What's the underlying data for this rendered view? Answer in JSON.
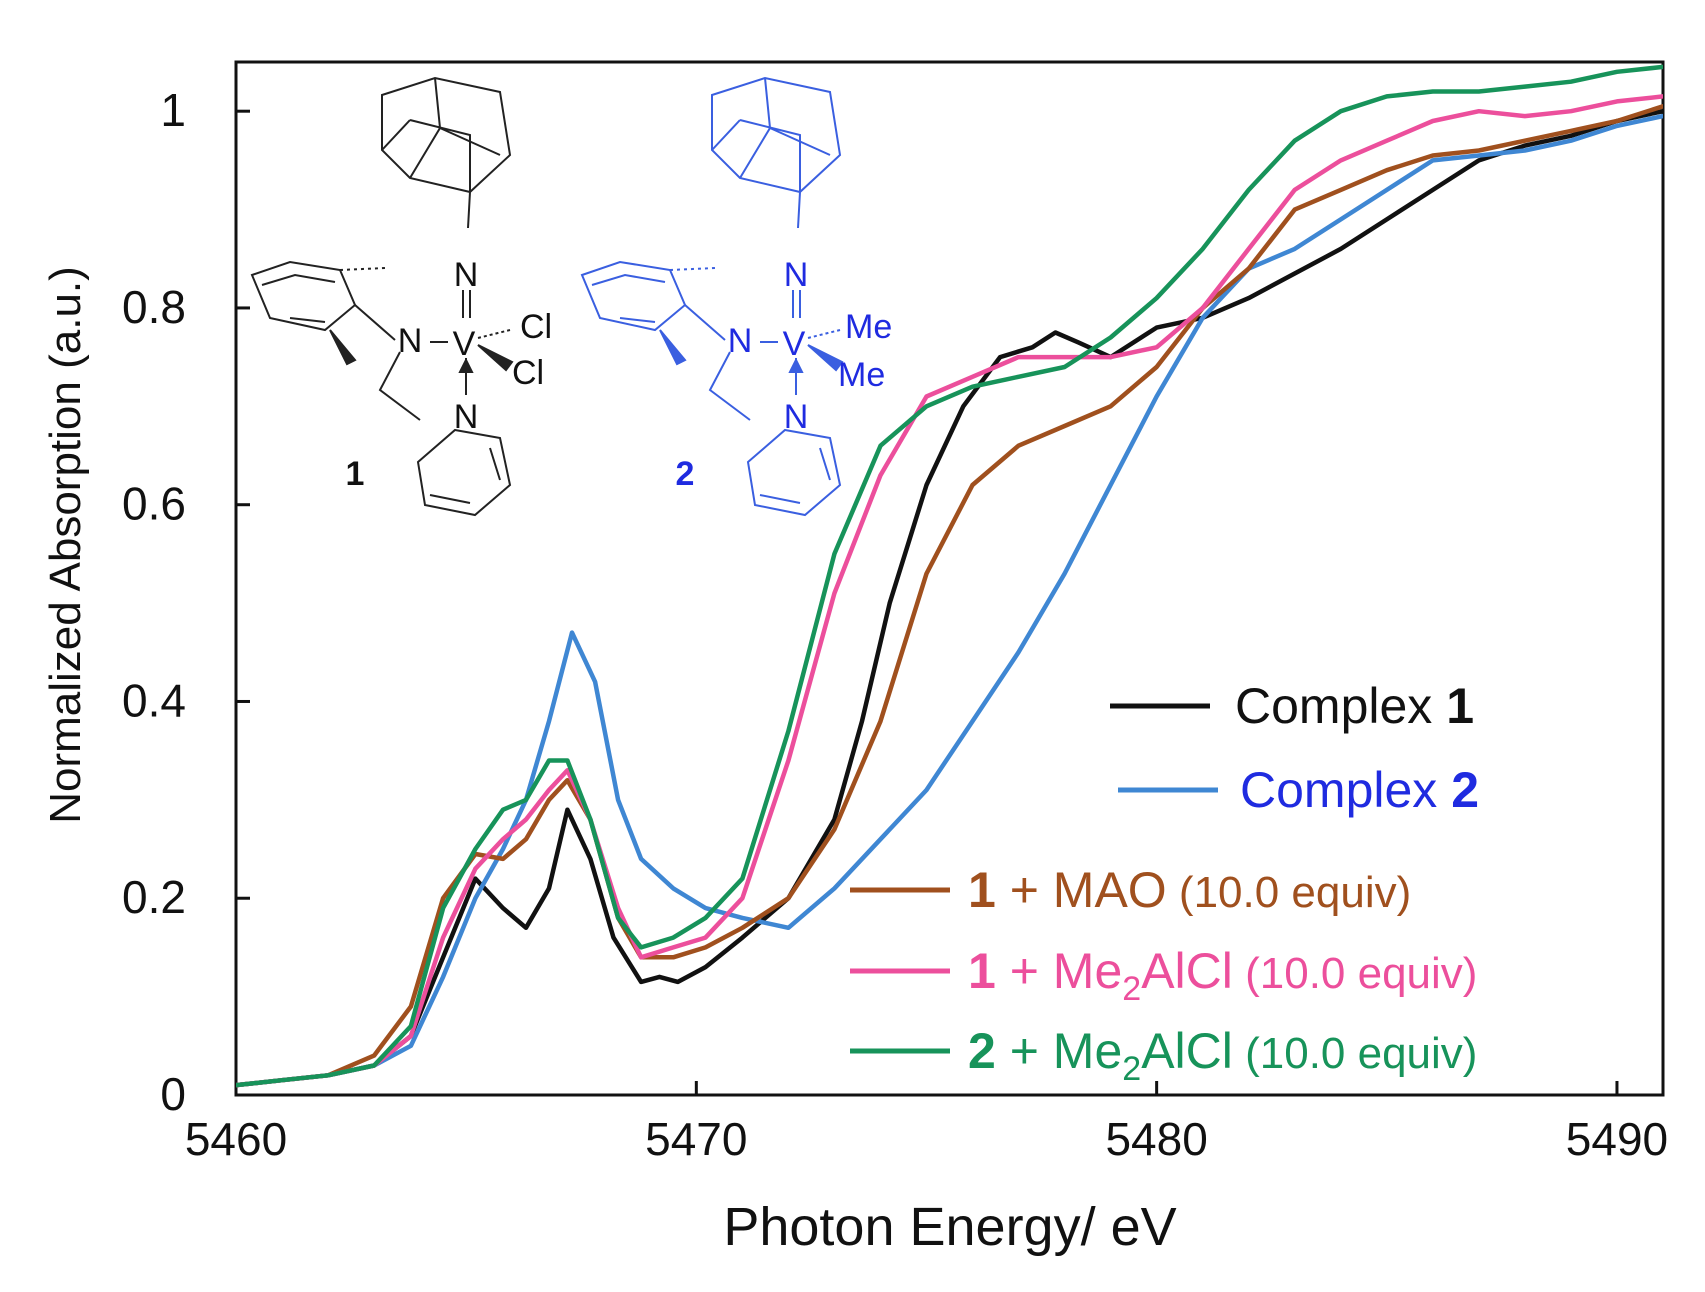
{
  "chart_data": {
    "type": "line",
    "xlabel": "Photon Energy/ eV",
    "ylabel": "Normalized Absorption (a.u.)",
    "xlim": [
      5460,
      5491
    ],
    "ylim": [
      0,
      1.05
    ],
    "xticks": [
      {
        "value": 5460,
        "label": "5460"
      },
      {
        "value": 5470,
        "label": "5470"
      },
      {
        "value": 5480,
        "label": "5480"
      },
      {
        "value": 5490,
        "label": "5490"
      }
    ],
    "yticks": [
      {
        "value": 0,
        "label": "0"
      },
      {
        "value": 0.2,
        "label": "0.2"
      },
      {
        "value": 0.4,
        "label": "0.4"
      },
      {
        "value": 0.6,
        "label": "0.6"
      },
      {
        "value": 0.8,
        "label": "0.8"
      },
      {
        "value": 1.0,
        "label": "1"
      }
    ],
    "series": [
      {
        "name": "Complex 1",
        "color": "#111111",
        "points": [
          [
            5460,
            0.01
          ],
          [
            5461,
            0.015
          ],
          [
            5462,
            0.02
          ],
          [
            5463,
            0.03
          ],
          [
            5463.8,
            0.06
          ],
          [
            5464.5,
            0.14
          ],
          [
            5465.2,
            0.22
          ],
          [
            5465.8,
            0.19
          ],
          [
            5466.3,
            0.17
          ],
          [
            5466.8,
            0.21
          ],
          [
            5467.2,
            0.29
          ],
          [
            5467.7,
            0.24
          ],
          [
            5468.2,
            0.16
          ],
          [
            5468.8,
            0.115
          ],
          [
            5469.2,
            0.12
          ],
          [
            5469.6,
            0.115
          ],
          [
            5470.2,
            0.13
          ],
          [
            5471,
            0.16
          ],
          [
            5472,
            0.2
          ],
          [
            5473,
            0.28
          ],
          [
            5473.6,
            0.38
          ],
          [
            5474.2,
            0.5
          ],
          [
            5475,
            0.62
          ],
          [
            5475.8,
            0.7
          ],
          [
            5476.6,
            0.75
          ],
          [
            5477.3,
            0.76
          ],
          [
            5477.8,
            0.775
          ],
          [
            5478.3,
            0.765
          ],
          [
            5479,
            0.75
          ],
          [
            5480,
            0.78
          ],
          [
            5480.5,
            0.785
          ],
          [
            5481,
            0.79
          ],
          [
            5482,
            0.81
          ],
          [
            5483,
            0.835
          ],
          [
            5484,
            0.86
          ],
          [
            5485,
            0.89
          ],
          [
            5486,
            0.92
          ],
          [
            5487,
            0.95
          ],
          [
            5488,
            0.965
          ],
          [
            5489,
            0.975
          ],
          [
            5490,
            0.99
          ],
          [
            5491,
            1.0
          ]
        ]
      },
      {
        "name": "Complex 2",
        "color": "#3f87d3",
        "points": [
          [
            5460,
            0.01
          ],
          [
            5461,
            0.015
          ],
          [
            5462,
            0.02
          ],
          [
            5463,
            0.03
          ],
          [
            5463.8,
            0.05
          ],
          [
            5464.5,
            0.12
          ],
          [
            5465.2,
            0.2
          ],
          [
            5465.8,
            0.25
          ],
          [
            5466.3,
            0.3
          ],
          [
            5466.8,
            0.38
          ],
          [
            5467.3,
            0.47
          ],
          [
            5467.8,
            0.42
          ],
          [
            5468.3,
            0.3
          ],
          [
            5468.8,
            0.24
          ],
          [
            5469.5,
            0.21
          ],
          [
            5470.2,
            0.19
          ],
          [
            5471,
            0.18
          ],
          [
            5472,
            0.17
          ],
          [
            5473,
            0.21
          ],
          [
            5474,
            0.26
          ],
          [
            5475,
            0.31
          ],
          [
            5476,
            0.38
          ],
          [
            5477,
            0.45
          ],
          [
            5478,
            0.53
          ],
          [
            5479,
            0.62
          ],
          [
            5480,
            0.71
          ],
          [
            5481,
            0.79
          ],
          [
            5482,
            0.84
          ],
          [
            5483,
            0.86
          ],
          [
            5484,
            0.89
          ],
          [
            5485,
            0.92
          ],
          [
            5486,
            0.95
          ],
          [
            5487,
            0.955
          ],
          [
            5488,
            0.96
          ],
          [
            5489,
            0.97
          ],
          [
            5490,
            0.985
          ],
          [
            5491,
            0.995
          ]
        ]
      },
      {
        "name": "1 + MAO (10.0 equiv)",
        "color": "#a0501e",
        "points": [
          [
            5460,
            0.01
          ],
          [
            5461,
            0.015
          ],
          [
            5462,
            0.02
          ],
          [
            5463,
            0.04
          ],
          [
            5463.8,
            0.09
          ],
          [
            5464.5,
            0.2
          ],
          [
            5465.2,
            0.245
          ],
          [
            5465.8,
            0.24
          ],
          [
            5466.3,
            0.26
          ],
          [
            5466.8,
            0.3
          ],
          [
            5467.2,
            0.32
          ],
          [
            5467.7,
            0.28
          ],
          [
            5468.3,
            0.18
          ],
          [
            5468.8,
            0.14
          ],
          [
            5469.5,
            0.14
          ],
          [
            5470.2,
            0.15
          ],
          [
            5471,
            0.17
          ],
          [
            5472,
            0.2
          ],
          [
            5473,
            0.27
          ],
          [
            5474,
            0.38
          ],
          [
            5475,
            0.53
          ],
          [
            5476,
            0.62
          ],
          [
            5477,
            0.66
          ],
          [
            5478,
            0.68
          ],
          [
            5479,
            0.7
          ],
          [
            5480,
            0.74
          ],
          [
            5481,
            0.8
          ],
          [
            5482,
            0.84
          ],
          [
            5483,
            0.9
          ],
          [
            5484,
            0.92
          ],
          [
            5485,
            0.94
          ],
          [
            5486,
            0.955
          ],
          [
            5487,
            0.96
          ],
          [
            5488,
            0.97
          ],
          [
            5489,
            0.98
          ],
          [
            5490,
            0.99
          ],
          [
            5491,
            1.005
          ]
        ]
      },
      {
        "name": "1 + Me2AlCl (10.0 equiv)",
        "color": "#ec4f9c",
        "points": [
          [
            5460,
            0.01
          ],
          [
            5461,
            0.015
          ],
          [
            5462,
            0.02
          ],
          [
            5463,
            0.03
          ],
          [
            5463.8,
            0.06
          ],
          [
            5464.5,
            0.16
          ],
          [
            5465.2,
            0.23
          ],
          [
            5465.8,
            0.26
          ],
          [
            5466.3,
            0.28
          ],
          [
            5466.8,
            0.31
          ],
          [
            5467.2,
            0.33
          ],
          [
            5467.7,
            0.28
          ],
          [
            5468.3,
            0.19
          ],
          [
            5468.8,
            0.14
          ],
          [
            5469.5,
            0.15
          ],
          [
            5470.2,
            0.16
          ],
          [
            5471,
            0.2
          ],
          [
            5472,
            0.34
          ],
          [
            5473,
            0.51
          ],
          [
            5474,
            0.63
          ],
          [
            5475,
            0.71
          ],
          [
            5476,
            0.73
          ],
          [
            5477,
            0.75
          ],
          [
            5478,
            0.75
          ],
          [
            5479,
            0.75
          ],
          [
            5480,
            0.76
          ],
          [
            5481,
            0.8
          ],
          [
            5482,
            0.86
          ],
          [
            5483,
            0.92
          ],
          [
            5484,
            0.95
          ],
          [
            5485,
            0.97
          ],
          [
            5486,
            0.99
          ],
          [
            5487,
            1.0
          ],
          [
            5488,
            0.995
          ],
          [
            5489,
            1.0
          ],
          [
            5490,
            1.01
          ],
          [
            5491,
            1.015
          ]
        ]
      },
      {
        "name": "2 + Me2AlCl (10.0 equiv)",
        "color": "#17935a",
        "points": [
          [
            5460,
            0.01
          ],
          [
            5461,
            0.015
          ],
          [
            5462,
            0.02
          ],
          [
            5463,
            0.03
          ],
          [
            5463.8,
            0.07
          ],
          [
            5464.5,
            0.19
          ],
          [
            5465.2,
            0.25
          ],
          [
            5465.8,
            0.29
          ],
          [
            5466.3,
            0.3
          ],
          [
            5466.8,
            0.34
          ],
          [
            5467.2,
            0.34
          ],
          [
            5467.7,
            0.28
          ],
          [
            5468.3,
            0.18
          ],
          [
            5468.8,
            0.15
          ],
          [
            5469.5,
            0.16
          ],
          [
            5470.2,
            0.18
          ],
          [
            5471,
            0.22
          ],
          [
            5472,
            0.37
          ],
          [
            5473,
            0.55
          ],
          [
            5474,
            0.66
          ],
          [
            5475,
            0.7
          ],
          [
            5476,
            0.72
          ],
          [
            5477,
            0.73
          ],
          [
            5478,
            0.74
          ],
          [
            5479,
            0.77
          ],
          [
            5480,
            0.81
          ],
          [
            5481,
            0.86
          ],
          [
            5482,
            0.92
          ],
          [
            5483,
            0.97
          ],
          [
            5484,
            1.0
          ],
          [
            5485,
            1.015
          ],
          [
            5486,
            1.02
          ],
          [
            5487,
            1.02
          ],
          [
            5488,
            1.025
          ],
          [
            5489,
            1.03
          ],
          [
            5490,
            1.04
          ],
          [
            5491,
            1.045
          ]
        ]
      }
    ],
    "legend": {
      "placement": "lower-right",
      "entries": [
        {
          "prefix": "",
          "text": "Complex ",
          "bold": "1",
          "sub": "",
          "rest": "",
          "paren": "",
          "line_color": "#111111",
          "text_color": "#111111",
          "bold_color": "#111111"
        },
        {
          "prefix": "",
          "text": "Complex ",
          "bold": "2",
          "sub": "",
          "rest": "",
          "paren": "",
          "line_color": "#3f87d3",
          "text_color": "#1f2be0",
          "bold_color": "#1f2be0"
        },
        {
          "prefix": "1",
          "text": " + MAO",
          "bold": "",
          "sub": "",
          "rest": "",
          "paren": " (10.0 equiv)",
          "line_color": "#a0501e",
          "text_color": "#a0501e",
          "bold_color": "#a0501e"
        },
        {
          "prefix": "1",
          "text": " + Me",
          "bold": "",
          "sub": "2",
          "rest": "AlCl",
          "paren": " (10.0 equiv)",
          "line_color": "#ec4f9c",
          "text_color": "#ec4f9c",
          "bold_color": "#ec4f9c"
        },
        {
          "prefix": "2",
          "text": " + Me",
          "bold": "",
          "sub": "2",
          "rest": "AlCl",
          "paren": " (10.0 equiv)",
          "line_color": "#17935a",
          "text_color": "#17935a",
          "bold_color": "#17935a"
        }
      ]
    },
    "inset_structures": [
      {
        "label": "1",
        "color": "#111111",
        "atoms": {
          "N_imido": "N",
          "N_amido": "N",
          "V": "V",
          "X1": "Cl",
          "X2": "Cl",
          "N_py": "N"
        }
      },
      {
        "label": "2",
        "color": "#1f2be0",
        "atoms": {
          "N_imido": "N",
          "N_amido": "N",
          "V": "V",
          "X1": "Me",
          "X2": "Me",
          "N_py": "N"
        }
      }
    ]
  }
}
